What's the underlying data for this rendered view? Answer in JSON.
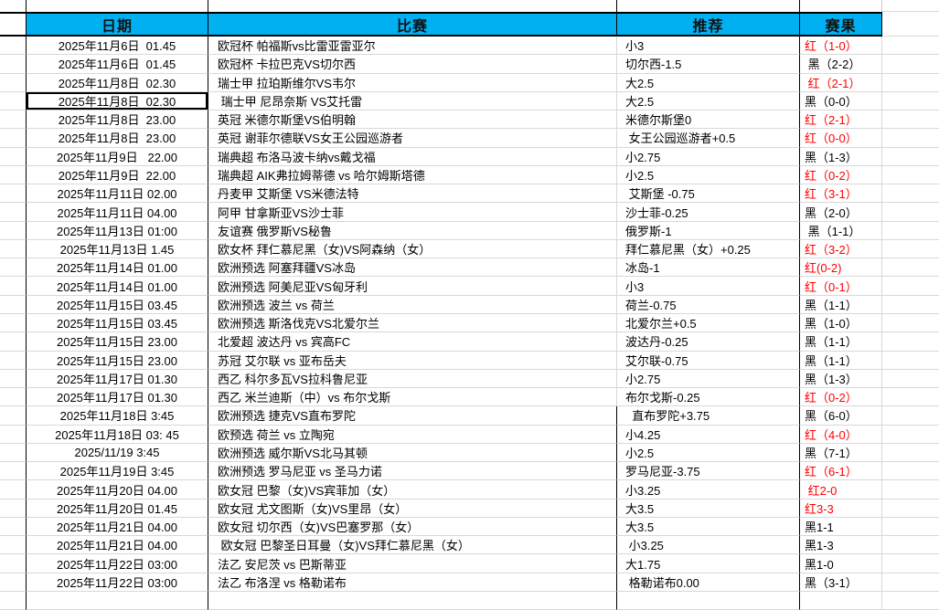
{
  "header": {
    "date": "日期",
    "match": "比赛",
    "recommend": "推荐",
    "result": "赛果"
  },
  "colors": {
    "header_bg": "#00B0F0",
    "win_text": "#FF0000",
    "loss_text": "#000000",
    "grid_line": "#D8D8D8"
  },
  "rows": [
    {
      "date": "2025年11月6日  01.45",
      "match": "欧冠杯 帕福斯vs比雷亚雷亚尔",
      "rec": "小3",
      "result": "红（1-0）",
      "win": true,
      "selected": false
    },
    {
      "date": "2025年11月6日  01.45",
      "match": "欧冠杯 卡拉巴克VS切尔西",
      "rec": "切尔西-1.5",
      "result": " 黑（2-2）",
      "win": false,
      "selected": false
    },
    {
      "date": "2025年11月8日  02.30",
      "match": "瑞士甲 拉珀斯维尔VS韦尔",
      "rec": "大2.5",
      "result": " 红（2-1）",
      "win": true,
      "selected": false
    },
    {
      "date": "2025年11月8日  02.30",
      "match": " 瑞士甲 尼昂奈斯 VS艾托雷",
      "rec": "大2.5",
      "result": "黑（0-0）",
      "win": false,
      "selected": true
    },
    {
      "date": "2025年11月8日  23.00",
      "match": "英冠 米德尔斯堡VS伯明翰",
      "rec": "米德尔斯堡0",
      "result": "红（2-1）",
      "win": true,
      "selected": false
    },
    {
      "date": "2025年11月8日  23.00",
      "match": "英冠 谢菲尔德联VS女王公园巡游者",
      "rec": " 女王公园巡游者+0.5",
      "result": "红（0-0）",
      "win": true,
      "selected": false
    },
    {
      "date": "2025年11月9日   22.00",
      "match": "瑞典超 布洛马波卡纳vs戴戈福",
      "rec": "小2.75",
      "result": "黑（1-3）",
      "win": false,
      "selected": false
    },
    {
      "date": "2025年11月9日  22.00",
      "match": "瑞典超 AIK弗拉姆蒂德 vs 哈尔姆斯塔德",
      "rec": "小2.5",
      "result": "红（0-2）",
      "win": true,
      "selected": false
    },
    {
      "date": "2025年11月11日 02.00",
      "match": "丹麦甲 艾斯堡 VS米德法特",
      "rec": " 艾斯堡 -0.75",
      "result": "红（3-1）",
      "win": true,
      "selected": false
    },
    {
      "date": "2025年11月11日 04.00",
      "match": "阿甲 甘拿斯亚VS沙士菲",
      "rec": "沙士菲-0.25",
      "result": "黑（2-0）",
      "win": false,
      "selected": false
    },
    {
      "date": "2025年11月13日 01:00",
      "match": "友谊赛 俄罗斯VS秘鲁",
      "rec": "俄罗斯-1",
      "result": " 黑（1-1）",
      "win": false,
      "selected": false
    },
    {
      "date": "2025年11月13日 1.45",
      "match": "欧女杯 拜仁慕尼黑（女)VS阿森纳（女）",
      "rec": "拜仁慕尼黑（女）+0.25",
      "result": "红（3-2）",
      "win": true,
      "selected": false
    },
    {
      "date": "2025年11月14日 01.00",
      "match": "欧洲预选 阿塞拜疆VS冰岛",
      "rec": "冰岛-1",
      "result": "红(0-2)",
      "win": true,
      "selected": false
    },
    {
      "date": "2025年11月14日 01.00",
      "match": "欧洲预选 阿美尼亚VS匈牙利",
      "rec": "小3",
      "result": "红（0-1）",
      "win": true,
      "selected": false
    },
    {
      "date": "2025年11月15日 03.45",
      "match": "欧洲预选 波兰 vs 荷兰",
      "rec": "荷兰-0.75",
      "result": "黑（1-1）",
      "win": false,
      "selected": false
    },
    {
      "date": "2025年11月15日 03.45",
      "match": "欧洲预选 斯洛伐克VS北爱尔兰",
      "rec": "北爱尔兰+0.5",
      "result": "黑（1-0）",
      "win": false,
      "selected": false
    },
    {
      "date": "2025年11月15日 23.00",
      "match": "北爱超 波达丹 vs 宾高FC",
      "rec": "波达丹-0.25",
      "result": "黑（1-1）",
      "win": false,
      "selected": false
    },
    {
      "date": "2025年11月15日 23.00",
      "match": "苏冠 艾尔联 vs 亚布岳夫",
      "rec": "艾尔联-0.75",
      "result": "黑（1-1）",
      "win": false,
      "selected": false
    },
    {
      "date": "2025年11月17日 01.30",
      "match": "西乙 科尔多瓦VS拉科鲁尼亚",
      "rec": "小2.75",
      "result": "黑（1-3）",
      "win": false,
      "selected": false
    },
    {
      "date": "2025年11月17日 01.30",
      "match": "西乙 米兰迪斯（中）vs 布尔戈斯",
      "rec": "布尔戈斯-0.25",
      "result": "红（0-2）",
      "win": true,
      "selected": false
    },
    {
      "date": "2025年11月18日 3:45",
      "match": "欧洲预选 捷克VS直布罗陀",
      "rec": "  直布罗陀+3.75",
      "result": "黑（6-0）",
      "win": false,
      "selected": false
    },
    {
      "date": "2025年11月18日 03: 45",
      "match": "欧预选 荷兰 vs 立陶宛",
      "rec": "小4.25",
      "result": "红（4-0）",
      "win": true,
      "selected": false
    },
    {
      "date": "2025/11/19 3:45",
      "match": "欧洲预选 威尔斯VS北马其顿",
      "rec": "小2.5",
      "result": "黑（7-1）",
      "win": false,
      "selected": false
    },
    {
      "date": "2025年11月19日 3:45",
      "match": "欧洲预选 罗马尼亚 vs 圣马力诺",
      "rec": "罗马尼亚-3.75",
      "result": "红（6-1）",
      "win": true,
      "selected": false
    },
    {
      "date": "2025年11月20日 04.00",
      "match": "欧女冠 巴黎（女)VS宾菲加（女）",
      "rec": "小3.25",
      "result": " 红2-0",
      "win": true,
      "selected": false
    },
    {
      "date": "2025年11月20日 01.45",
      "match": "欧女冠 尤文图斯（女)VS里昂（女）",
      "rec": "大3.5",
      "result": "红3-3",
      "win": true,
      "selected": false
    },
    {
      "date": "2025年11月21日 04.00",
      "match": "欧女冠 切尔西（女)VS巴塞罗那（女）",
      "rec": "大3.5",
      "result": "黑1-1",
      "win": false,
      "selected": false
    },
    {
      "date": "2025年11月21日 04.00",
      "match": " 欧女冠 巴黎圣日耳曼（女)VS拜仁慕尼黑（女）",
      "rec": " 小3.25",
      "result": "黑1-3",
      "win": false,
      "selected": false
    },
    {
      "date": "2025年11月22日 03:00",
      "match": "法乙 安尼茨 vs 巴斯蒂亚",
      "rec": "大1.75",
      "result": "黑1-0",
      "win": false,
      "selected": false
    },
    {
      "date": "2025年11月22日 03:00",
      "match": "法乙 布洛涅 vs 格勒诺布",
      "rec": " 格勒诺布0.00",
      "result": "黑（3-1）",
      "win": false,
      "selected": false
    }
  ]
}
